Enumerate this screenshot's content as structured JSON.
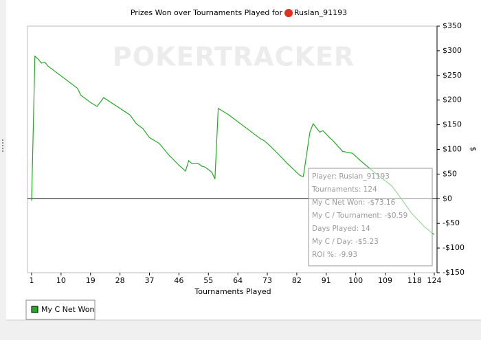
{
  "chart_data": {
    "type": "line",
    "title": "Prizes Won over Tournaments Played for",
    "player": "Ruslan_91193",
    "watermark": "POKERTRACKER",
    "x_label": "Tournaments Played",
    "y_label": "$",
    "xlim": [
      1,
      124
    ],
    "xticks": [
      1,
      10,
      19,
      28,
      37,
      46,
      55,
      64,
      73,
      82,
      91,
      100,
      109,
      118,
      124
    ],
    "ylim": [
      -150,
      350
    ],
    "yticks": [
      {
        "value": -150,
        "label": "-$150"
      },
      {
        "value": -100,
        "label": "-$100"
      },
      {
        "value": -50,
        "label": "-$50"
      },
      {
        "value": 0,
        "label": "$0"
      },
      {
        "value": 50,
        "label": "$50"
      },
      {
        "value": 100,
        "label": "$100"
      },
      {
        "value": 150,
        "label": "$150"
      },
      {
        "value": 200,
        "label": "$200"
      },
      {
        "value": 250,
        "label": "$250"
      },
      {
        "value": 300,
        "label": "$300"
      },
      {
        "value": 350,
        "label": "$350"
      }
    ],
    "x": [
      1,
      2,
      3,
      4,
      5,
      6,
      15,
      16,
      19,
      21,
      23,
      31,
      33,
      35,
      37,
      40,
      43,
      46,
      48,
      49,
      50,
      52,
      53,
      54,
      56,
      57,
      58,
      61,
      69,
      71,
      72,
      74,
      76,
      79,
      83,
      84,
      86,
      87,
      89,
      90,
      92,
      93,
      96,
      99,
      102,
      106,
      111,
      114,
      117,
      121,
      124
    ],
    "series": [
      {
        "name": "My C Net Won",
        "color": "#22aa22",
        "values": [
          -4,
          289,
          283,
          275,
          277,
          269,
          224,
          210,
          195,
          187,
          205,
          170,
          152,
          142,
          124,
          112,
          88,
          68,
          56,
          77,
          71,
          71,
          66,
          64,
          54,
          40,
          183,
          171,
          131,
          121,
          118,
          106,
          93,
          72,
          47,
          45,
          135,
          152,
          135,
          138,
          124,
          118,
          96,
          92,
          74,
          52,
          26,
          -1,
          -29,
          -57,
          -73
        ]
      }
    ],
    "tooltip": [
      "Player: Ruslan_91193",
      "Tournaments: 124",
      "My C Net Won: -$73.16",
      "My C / Tournament: -$0.59",
      "Days Played: 14",
      "My C / Day: -$5.23",
      "ROI %: -9.93"
    ]
  }
}
